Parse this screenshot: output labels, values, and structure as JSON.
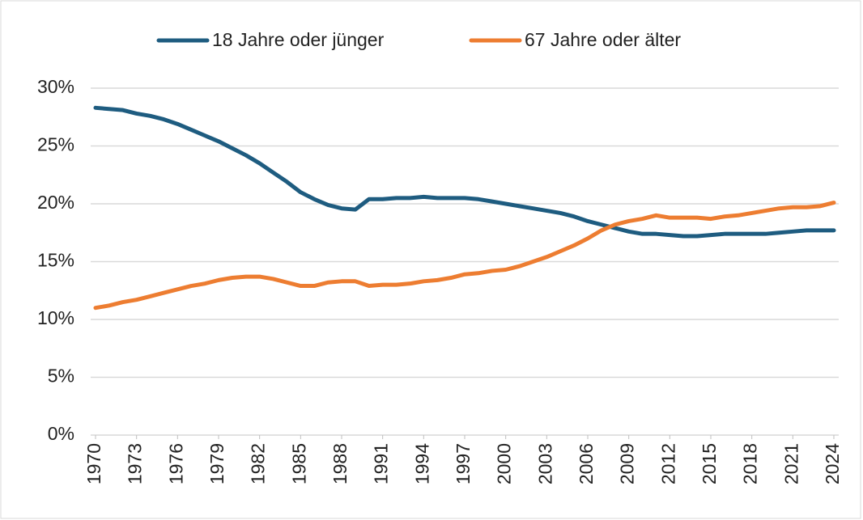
{
  "chart_data": {
    "type": "line",
    "x": [
      1970,
      1971,
      1972,
      1973,
      1974,
      1975,
      1976,
      1977,
      1978,
      1979,
      1980,
      1981,
      1982,
      1983,
      1984,
      1985,
      1986,
      1987,
      1988,
      1989,
      1990,
      1991,
      1992,
      1993,
      1994,
      1995,
      1996,
      1997,
      1998,
      1999,
      2000,
      2001,
      2002,
      2003,
      2004,
      2005,
      2006,
      2007,
      2008,
      2009,
      2010,
      2011,
      2012,
      2013,
      2014,
      2015,
      2016,
      2017,
      2018,
      2019,
      2020,
      2021,
      2022,
      2023,
      2024
    ],
    "series": [
      {
        "name": "18 Jahre oder jünger",
        "color": "#1e5c80",
        "values": [
          28.3,
          28.2,
          28.1,
          27.8,
          27.6,
          27.3,
          26.9,
          26.4,
          25.9,
          25.4,
          24.8,
          24.2,
          23.5,
          22.7,
          21.9,
          21.0,
          20.4,
          19.9,
          19.6,
          19.5,
          20.4,
          20.4,
          20.5,
          20.5,
          20.6,
          20.5,
          20.5,
          20.5,
          20.4,
          20.2,
          20.0,
          19.8,
          19.6,
          19.4,
          19.2,
          18.9,
          18.5,
          18.2,
          17.9,
          17.6,
          17.4,
          17.4,
          17.3,
          17.2,
          17.2,
          17.3,
          17.4,
          17.4,
          17.4,
          17.4,
          17.5,
          17.6,
          17.7,
          17.7,
          17.7
        ]
      },
      {
        "name": "67 Jahre oder älter",
        "color": "#ed7d31",
        "values": [
          11.0,
          11.2,
          11.5,
          11.7,
          12.0,
          12.3,
          12.6,
          12.9,
          13.1,
          13.4,
          13.6,
          13.7,
          13.7,
          13.5,
          13.2,
          12.9,
          12.9,
          13.2,
          13.3,
          13.3,
          12.9,
          13.0,
          13.0,
          13.1,
          13.3,
          13.4,
          13.6,
          13.9,
          14.0,
          14.2,
          14.3,
          14.6,
          15.0,
          15.4,
          15.9,
          16.4,
          17.0,
          17.7,
          18.2,
          18.5,
          18.7,
          19.0,
          18.8,
          18.8,
          18.8,
          18.7,
          18.9,
          19.0,
          19.2,
          19.4,
          19.6,
          19.7,
          19.7,
          19.8,
          20.1
        ]
      }
    ],
    "xlim": [
      1970,
      2024
    ],
    "xticks": [
      1970,
      1973,
      1976,
      1979,
      1982,
      1985,
      1988,
      1991,
      1994,
      1997,
      2000,
      2003,
      2006,
      2009,
      2012,
      2015,
      2018,
      2021,
      2024
    ],
    "ylim": [
      0,
      30
    ],
    "yticks": [
      {
        "value": 0,
        "label": "0%"
      },
      {
        "value": 5,
        "label": "5%"
      },
      {
        "value": 10,
        "label": "10%"
      },
      {
        "value": 15,
        "label": "15%"
      },
      {
        "value": 20,
        "label": "20%"
      },
      {
        "value": 25,
        "label": "25%"
      },
      {
        "value": 30,
        "label": "30%"
      }
    ],
    "grid": true,
    "legend": "top"
  }
}
